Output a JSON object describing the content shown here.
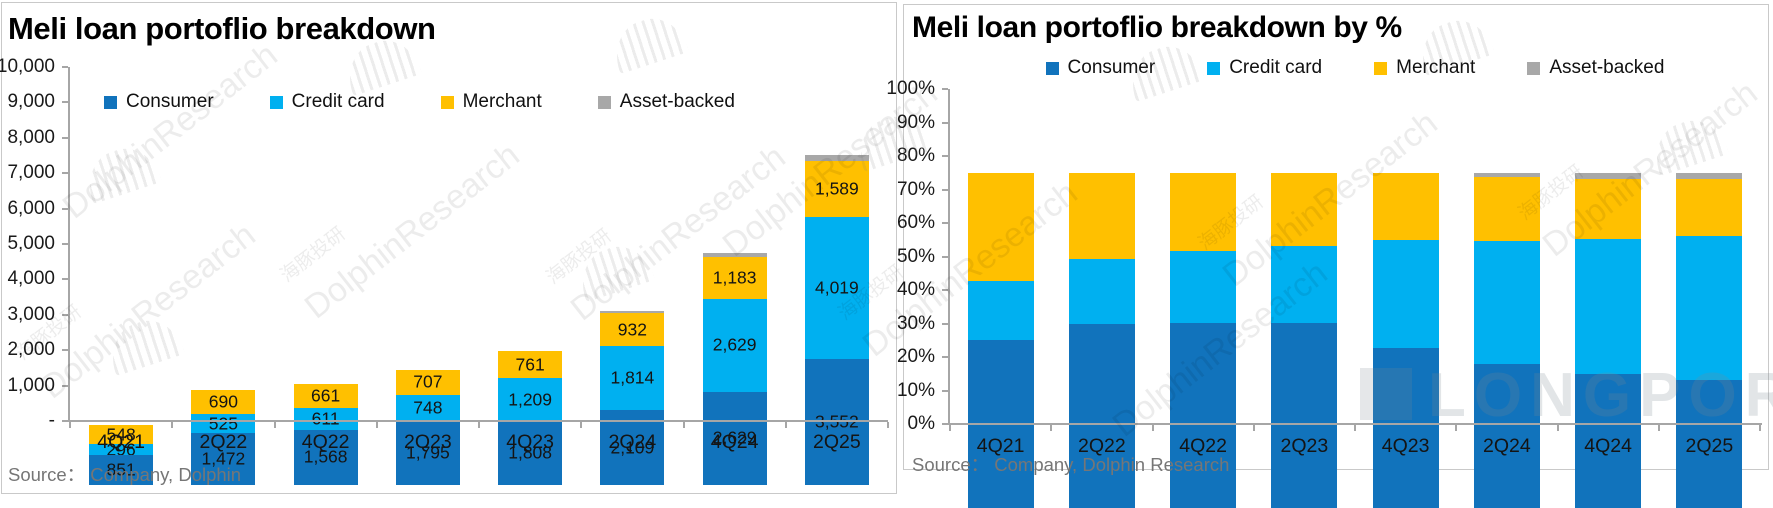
{
  "watermark": {
    "brand_en": "DolphinResearch",
    "brand_cn": "海豚投研",
    "platform": "LONGPORT"
  },
  "chart_data": [
    {
      "type": "bar",
      "stacked": true,
      "title": "Meli loan portoflio breakdown",
      "categories": [
        "4Q21",
        "2Q22",
        "4Q22",
        "2Q23",
        "4Q23",
        "2Q24",
        "4Q24",
        "2Q25"
      ],
      "series": [
        {
          "name": "Consumer",
          "color": "#1173bc",
          "values": [
            851,
            1472,
            1568,
            1795,
            1808,
            2109,
            2629,
            3552
          ]
        },
        {
          "name": "Credit card",
          "color": "#00b0f0",
          "values": [
            296,
            525,
            611,
            748,
            1209,
            1814,
            2629,
            4019
          ]
        },
        {
          "name": "Merchant",
          "color": "#ffc000",
          "values": [
            548,
            690,
            661,
            707,
            761,
            932,
            1183,
            1589
          ]
        },
        {
          "name": "Asset-backed",
          "color": "#a8a8a8",
          "values": [
            0,
            0,
            0,
            0,
            0,
            60,
            110,
            170
          ],
          "labels": false,
          "estimated": true
        }
      ],
      "data_labels": true,
      "ylim": [
        0,
        10000
      ],
      "ytick_labels": [
        "10,000",
        "9,000",
        "8,000",
        "7,000",
        "6,000",
        "5,000",
        "4,000",
        "3,000",
        "2,000",
        "1,000",
        "-"
      ],
      "legend_position": "top-inside",
      "grid": false,
      "source": "Source：  Company, Dolphin"
    },
    {
      "type": "bar",
      "stacked": true,
      "percent": true,
      "title": "Meli loan portoflio breakdown by %",
      "categories": [
        "4Q21",
        "2Q22",
        "4Q22",
        "2Q23",
        "4Q23",
        "2Q24",
        "4Q24",
        "2Q25"
      ],
      "series": [
        {
          "name": "Consumer",
          "color": "#1173bc",
          "values": [
            50.2,
            54.8,
            55.2,
            55.2,
            47.9,
            42.9,
            40.1,
            38.1
          ]
        },
        {
          "name": "Credit card",
          "color": "#00b0f0",
          "values": [
            17.5,
            19.5,
            21.5,
            23.0,
            32.0,
            36.9,
            40.1,
            43.1
          ]
        },
        {
          "name": "Merchant",
          "color": "#ffc000",
          "values": [
            32.3,
            25.7,
            23.3,
            21.8,
            20.1,
            19.0,
            18.1,
            17.0
          ]
        },
        {
          "name": "Asset-backed",
          "color": "#a8a8a8",
          "values": [
            0,
            0,
            0,
            0,
            0,
            1.2,
            1.7,
            1.8
          ]
        }
      ],
      "data_labels": false,
      "ylim": [
        0,
        100
      ],
      "ytick_labels": [
        "100%",
        "90%",
        "80%",
        "70%",
        "60%",
        "50%",
        "40%",
        "30%",
        "20%",
        "10%",
        "0%"
      ],
      "legend_position": "top",
      "grid": false,
      "source": "Source：  Company, Dolphin Research"
    }
  ]
}
